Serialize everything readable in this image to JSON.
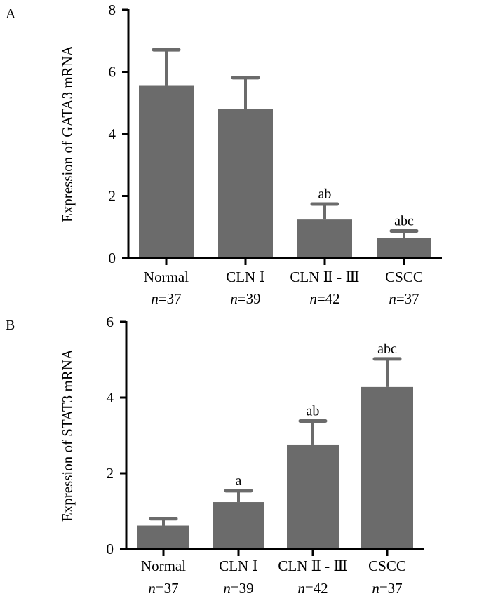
{
  "chart_data": [
    {
      "type": "bar",
      "panel_label": "A",
      "title": "",
      "xlabel": "",
      "ylabel": "Expression of GATA3 mRNA",
      "ylim": [
        0,
        8
      ],
      "yticks": [
        "0",
        "2",
        "4",
        "6",
        "8"
      ],
      "categories": [
        "Normal",
        "CLN Ⅰ",
        "CLN Ⅱ - Ⅲ",
        "CSCC"
      ],
      "sample_sizes": [
        "=37",
        "=39",
        "=42",
        "=37"
      ],
      "n_symbol": "n",
      "values": [
        5.57,
        4.8,
        1.24,
        0.65
      ],
      "error_upper": [
        6.71,
        5.81,
        1.74,
        0.87
      ],
      "annotations": [
        "",
        "",
        "ab",
        "abc"
      ],
      "bar_color": "#6b6b6b",
      "grid": false
    },
    {
      "type": "bar",
      "panel_label": "B",
      "title": "",
      "xlabel": "",
      "ylabel": "Expression of STAT3 mRNA",
      "ylim": [
        0,
        6
      ],
      "yticks": [
        "0",
        "2",
        "4",
        "6"
      ],
      "categories": [
        "Normal",
        "CLN Ⅰ",
        "CLN Ⅱ - Ⅲ",
        "CSCC"
      ],
      "sample_sizes": [
        "=37",
        "=39",
        "=42",
        "=37"
      ],
      "n_symbol": "n",
      "values": [
        0.62,
        1.24,
        2.76,
        4.28
      ],
      "error_upper": [
        0.8,
        1.54,
        3.38,
        5.02
      ],
      "annotations": [
        "",
        "a",
        "ab",
        "abc"
      ],
      "bar_color": "#6b6b6b",
      "grid": false
    }
  ]
}
